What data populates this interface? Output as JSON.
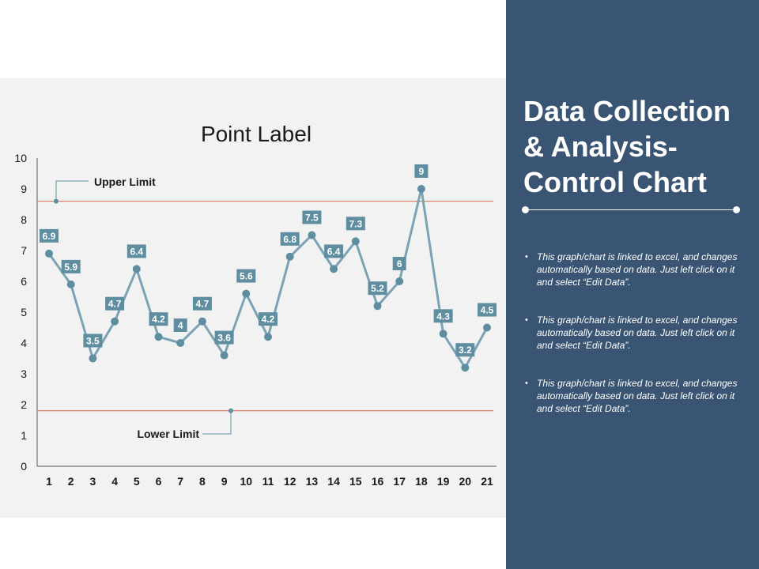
{
  "chart_data": {
    "type": "line",
    "title": "Point Label",
    "x": [
      "1",
      "2",
      "3",
      "4",
      "5",
      "6",
      "7",
      "8",
      "9",
      "10",
      "11",
      "12",
      "13",
      "14",
      "15",
      "16",
      "17",
      "18",
      "19",
      "20",
      "21"
    ],
    "series": [
      {
        "values": [
          6.9,
          5.9,
          3.5,
          4.7,
          6.4,
          4.2,
          4,
          4.7,
          3.6,
          5.6,
          4.2,
          6.8,
          7.5,
          6.4,
          7.3,
          5.2,
          6,
          9,
          4.3,
          3.2,
          4.5
        ]
      }
    ],
    "ylim": [
      0,
      10
    ],
    "yticks": [
      "0",
      "1",
      "2",
      "3",
      "4",
      "5",
      "6",
      "7",
      "8",
      "9",
      "10"
    ],
    "upper_limit": {
      "label": "Upper Limit",
      "value": 8.6
    },
    "lower_limit": {
      "label": "Lower Limit",
      "value": 1.8
    },
    "grid": false,
    "legend": "none",
    "line_color": "#7ba3b5",
    "label_box_color": "#5f8ea1",
    "limit_line_color": "#d9694a"
  },
  "side": {
    "title": "Data Collection & Analysis- Control Chart",
    "bullets": [
      "This graph/chart is linked to excel, and changes automatically based on data. Just left click on it and select “Edit Data”.",
      "This graph/chart is linked to excel, and changes automatically based on data. Just left click on it and select “Edit Data”.",
      "This graph/chart is linked to excel, and changes automatically based on data. Just left click on it and select “Edit Data”."
    ]
  }
}
